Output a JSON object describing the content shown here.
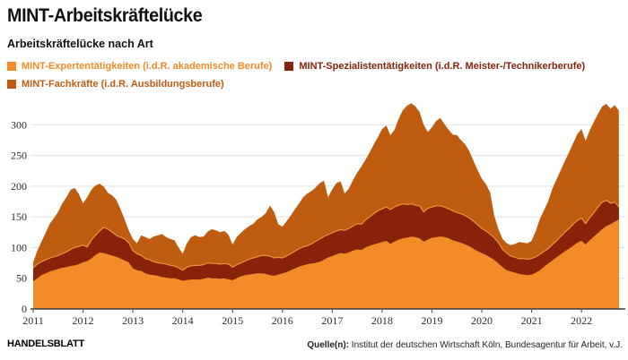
{
  "header": {
    "title": "MINT-Arbeitskräftelücke",
    "subtitle": "Arbeitskräftelücke nach Art"
  },
  "legend": {
    "items": [
      {
        "label": "MINT-Expertentätigkeiten (i.d.R. akademische Berufe)",
        "color": "#F28C28"
      },
      {
        "label": "MINT-Spezialistentätigkeiten (i.d.R. Meister-/Technikerberufe)",
        "color": "#862309"
      },
      {
        "label": "MINT-Fachkräfte (i.d.R. Ausbildungsberufe)",
        "color": "#C05C10"
      }
    ]
  },
  "chart_data": {
    "type": "area",
    "stacked": true,
    "title": "MINT-Arbeitskräftelücke",
    "subtitle": "Arbeitskräftelücke nach Art",
    "x_unit": "month",
    "x_start": "2011-01",
    "x_end": "2022-10",
    "xlabel": "",
    "ylabel": "",
    "ylim": [
      0,
      345
    ],
    "yticks": [
      0,
      50,
      100,
      150,
      200,
      250,
      300
    ],
    "xticks": [
      "2011",
      "2012",
      "2013",
      "2014",
      "2015",
      "2016",
      "2017",
      "2018",
      "2019",
      "2020",
      "2021",
      "2022"
    ],
    "grid": true,
    "legend_position": "top",
    "colors": {
      "gridline": "#E2E2E2",
      "baseline": "#3A3A3A",
      "axis_text": "#2B2B2B",
      "boundary_stroke": "#F29A3F"
    },
    "series": [
      {
        "name": "MINT-Expertentätigkeiten (i.d.R. akademische Berufe)",
        "color": "#F28C28",
        "values": [
          45,
          50,
          55,
          58,
          61,
          63,
          65,
          67,
          68,
          70,
          71,
          73,
          76,
          78,
          82,
          88,
          92,
          91,
          89,
          87,
          85,
          82,
          79,
          76,
          66,
          63,
          62,
          58,
          56,
          55,
          54,
          52,
          51,
          50,
          50,
          48,
          46,
          47,
          48,
          48,
          48,
          49,
          51,
          50,
          50,
          49,
          50,
          48,
          47,
          50,
          53,
          55,
          56,
          57,
          58,
          58,
          57,
          55,
          54,
          56,
          58,
          60,
          63,
          66,
          69,
          71,
          73,
          74,
          75,
          77,
          80,
          84,
          86,
          89,
          91,
          90,
          92,
          95,
          97,
          96,
          100,
          103,
          105,
          107,
          109,
          111,
          106,
          110,
          113,
          115,
          116,
          118,
          117,
          115,
          110,
          113,
          116,
          117,
          118,
          117,
          115,
          112,
          110,
          108,
          105,
          102,
          98,
          94,
          91,
          88,
          84,
          80,
          74,
          68,
          63,
          61,
          59,
          57,
          56,
          55,
          56,
          59,
          63,
          69,
          74,
          79,
          84,
          89,
          94,
          98,
          103,
          108,
          111,
          105,
          112,
          118,
          124,
          130,
          135,
          138,
          142,
          146
        ]
      },
      {
        "name": "MINT-Spezialistentätigkeiten (i.d.R. Meister-/Technikerberufe)",
        "color": "#862309",
        "values": [
          22,
          23,
          22,
          22,
          22,
          22,
          22,
          23,
          25,
          27,
          29,
          29,
          28,
          23,
          30,
          32,
          35,
          42,
          41,
          38,
          35,
          35,
          35,
          32,
          29,
          27,
          25,
          24,
          24,
          22,
          21,
          22,
          22,
          21,
          20,
          19,
          17,
          21,
          22,
          23,
          23,
          23,
          24,
          24,
          24,
          24,
          24,
          25,
          21,
          22,
          22,
          23,
          25,
          26,
          27,
          29,
          30,
          31,
          29,
          28,
          25,
          26,
          27,
          28,
          29,
          30,
          30,
          32,
          35,
          37,
          38,
          37,
          38,
          38,
          38,
          38,
          39,
          40,
          42,
          42,
          45,
          47,
          50,
          53,
          54,
          55,
          56,
          56,
          56,
          56,
          54,
          53,
          52,
          53,
          48,
          51,
          50,
          51,
          50,
          49,
          48,
          48,
          47,
          47,
          47,
          46,
          45,
          43,
          40,
          39,
          38,
          36,
          34,
          29,
          28,
          25,
          25,
          25,
          26,
          26,
          26,
          26,
          26,
          25,
          24,
          26,
          27,
          29,
          31,
          33,
          35,
          36,
          37,
          34,
          37,
          39,
          42,
          44,
          42,
          34,
          32,
          20
        ]
      },
      {
        "name": "MINT-Fachkräfte (i.d.R. Ausbildungsberufe)",
        "color": "#C05C10",
        "values": [
          9,
          22,
          33,
          44,
          56,
          63,
          71,
          82,
          89,
          97,
          97,
          85,
          68,
          81,
          82,
          81,
          77,
          66,
          59,
          60,
          58,
          46,
          32,
          20,
          19,
          17,
          33,
          35,
          34,
          41,
          45,
          48,
          44,
          43,
          42,
          33,
          27,
          39,
          47,
          49,
          46,
          46,
          51,
          56,
          54,
          52,
          53,
          48,
          37,
          45,
          49,
          52,
          54,
          56,
          61,
          63,
          69,
          82,
          75,
          54,
          51,
          57,
          62,
          68,
          74,
          81,
          85,
          86,
          88,
          91,
          91,
          61,
          71,
          78,
          79,
          60,
          65,
          75,
          83,
          94,
          98,
          105,
          113,
          120,
          130,
          133,
          121,
          126,
          141,
          153,
          161,
          164,
          161,
          153,
          142,
          124,
          130,
          138,
          143,
          135,
          129,
          124,
          126,
          120,
          116,
          109,
          98,
          89,
          81,
          76,
          68,
          36,
          22,
          17,
          16,
          18,
          22,
          27,
          26,
          26,
          29,
          42,
          58,
          67,
          78,
          91,
          100,
          108,
          116,
          124,
          132,
          141,
          145,
          135,
          142,
          148,
          152,
          156,
          157,
          154,
          158,
          157
        ]
      }
    ]
  },
  "footer": {
    "brand": "HANDELSBLATT",
    "source_label": "Quelle(n):",
    "source_text": " Institut der deutschen Wirtschaft Köln, Bundesagentur für Arbeit, v.J."
  }
}
